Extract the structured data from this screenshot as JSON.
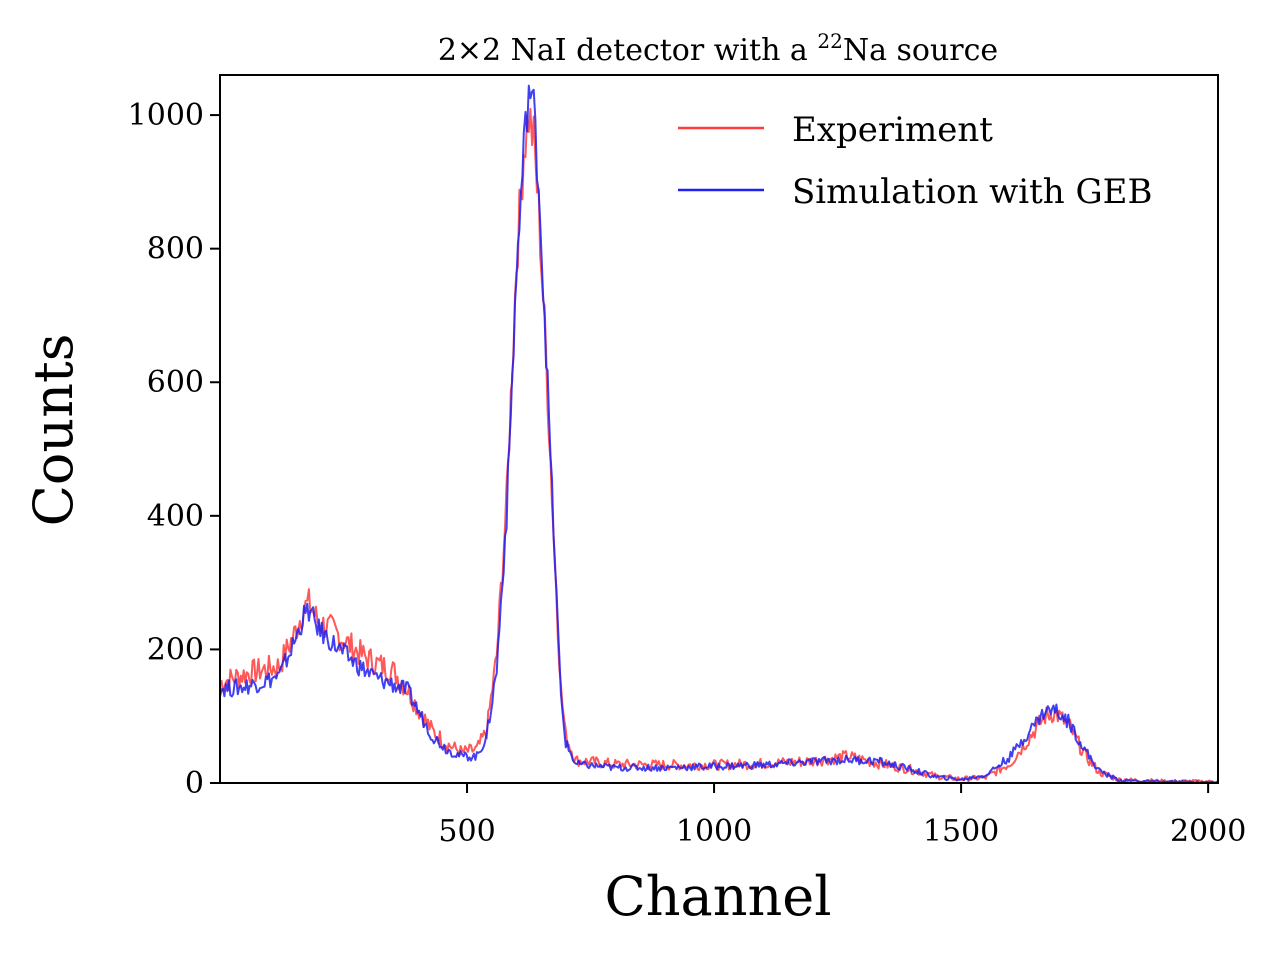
{
  "chart_data": {
    "type": "line",
    "title": {
      "prefix": "2×2 NaI detector with a ",
      "superscript": "22",
      "suffix": "Na source"
    },
    "xlabel": "Channel",
    "ylabel": "Counts",
    "xlim": [
      0,
      2020
    ],
    "ylim": [
      0,
      1060
    ],
    "x_ticks": [
      500,
      1000,
      1500,
      2000
    ],
    "y_ticks": [
      0,
      200,
      400,
      600,
      800,
      1000
    ],
    "grid": false,
    "legend_position": "top-right",
    "series": [
      {
        "name": "Experiment",
        "color": "#ff3b3b",
        "points": [
          [
            0,
            150
          ],
          [
            30,
            158
          ],
          [
            60,
            165
          ],
          [
            90,
            170
          ],
          [
            120,
            175
          ],
          [
            150,
            222
          ],
          [
            170,
            262
          ],
          [
            180,
            268
          ],
          [
            200,
            240
          ],
          [
            230,
            228
          ],
          [
            260,
            208
          ],
          [
            290,
            190
          ],
          [
            320,
            178
          ],
          [
            350,
            168
          ],
          [
            380,
            140
          ],
          [
            400,
            112
          ],
          [
            430,
            78
          ],
          [
            460,
            58
          ],
          [
            490,
            46
          ],
          [
            520,
            50
          ],
          [
            540,
            78
          ],
          [
            560,
            190
          ],
          [
            580,
            420
          ],
          [
            600,
            780
          ],
          [
            615,
            950
          ],
          [
            625,
            1000
          ],
          [
            635,
            960
          ],
          [
            645,
            860
          ],
          [
            660,
            640
          ],
          [
            675,
            380
          ],
          [
            690,
            140
          ],
          [
            700,
            70
          ],
          [
            720,
            34
          ],
          [
            800,
            28
          ],
          [
            900,
            27
          ],
          [
            1000,
            27
          ],
          [
            1100,
            29
          ],
          [
            1200,
            33
          ],
          [
            1270,
            40
          ],
          [
            1330,
            30
          ],
          [
            1400,
            20
          ],
          [
            1450,
            10
          ],
          [
            1500,
            6
          ],
          [
            1550,
            8
          ],
          [
            1600,
            30
          ],
          [
            1640,
            70
          ],
          [
            1670,
            100
          ],
          [
            1690,
            106
          ],
          [
            1720,
            84
          ],
          [
            1750,
            42
          ],
          [
            1780,
            16
          ],
          [
            1820,
            5
          ],
          [
            1900,
            3
          ],
          [
            2020,
            2
          ]
        ]
      },
      {
        "name": "Simulation with GEB",
        "color": "#2020f0",
        "points": [
          [
            0,
            142
          ],
          [
            30,
            142
          ],
          [
            60,
            146
          ],
          [
            90,
            152
          ],
          [
            120,
            160
          ],
          [
            150,
            210
          ],
          [
            170,
            250
          ],
          [
            180,
            258
          ],
          [
            200,
            230
          ],
          [
            230,
            208
          ],
          [
            260,
            188
          ],
          [
            290,
            170
          ],
          [
            320,
            156
          ],
          [
            350,
            148
          ],
          [
            380,
            138
          ],
          [
            400,
            110
          ],
          [
            430,
            70
          ],
          [
            460,
            50
          ],
          [
            490,
            40
          ],
          [
            520,
            40
          ],
          [
            540,
            70
          ],
          [
            560,
            170
          ],
          [
            580,
            400
          ],
          [
            600,
            760
          ],
          [
            615,
            950
          ],
          [
            625,
            1040
          ],
          [
            635,
            1010
          ],
          [
            645,
            900
          ],
          [
            660,
            650
          ],
          [
            675,
            380
          ],
          [
            690,
            130
          ],
          [
            700,
            60
          ],
          [
            720,
            28
          ],
          [
            800,
            23
          ],
          [
            900,
            23
          ],
          [
            1000,
            25
          ],
          [
            1100,
            27
          ],
          [
            1200,
            32
          ],
          [
            1270,
            35
          ],
          [
            1330,
            33
          ],
          [
            1400,
            20
          ],
          [
            1450,
            9
          ],
          [
            1500,
            5
          ],
          [
            1550,
            12
          ],
          [
            1600,
            40
          ],
          [
            1640,
            80
          ],
          [
            1670,
            108
          ],
          [
            1690,
            110
          ],
          [
            1720,
            90
          ],
          [
            1750,
            50
          ],
          [
            1780,
            18
          ],
          [
            1820,
            4
          ],
          [
            1900,
            2
          ],
          [
            2020,
            1
          ]
        ]
      }
    ]
  }
}
